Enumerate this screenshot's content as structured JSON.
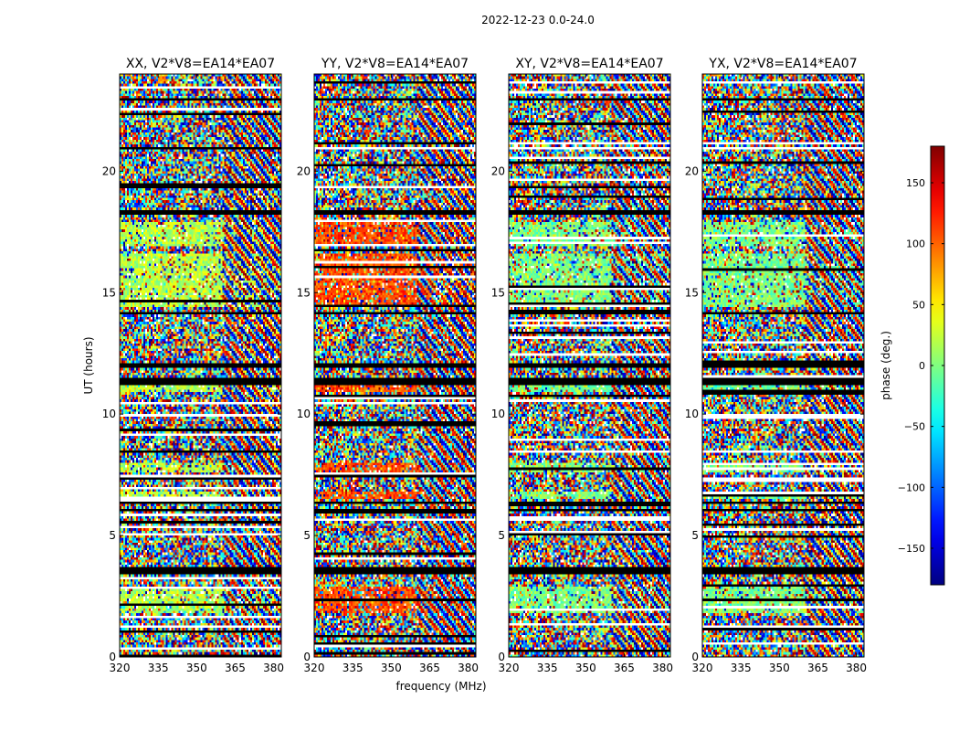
{
  "suptitle": "2022-12-23 0.0-24.0",
  "chart_data": {
    "type": "heatmap",
    "panels": [
      {
        "title": "XX, V2*V8=EA14*EA07",
        "pol": "XX",
        "coherent_value": 20
      },
      {
        "title": "YY, V2*V8=EA14*EA07",
        "pol": "YY",
        "coherent_value": 110
      },
      {
        "title": "XY, V2*V8=EA14*EA07",
        "pol": "XY",
        "coherent_value": 0
      },
      {
        "title": "YX, V2*V8=EA14*EA07",
        "pol": "YX",
        "coherent_value": 0
      }
    ],
    "x": {
      "label": "frequency (MHz)",
      "range": [
        320,
        383
      ],
      "ticks": [
        320,
        335,
        350,
        365,
        380
      ],
      "tick_labels": [
        "320",
        "335",
        "350",
        "365",
        "380"
      ]
    },
    "y": {
      "label": "UT (hours)",
      "range": [
        0,
        24
      ],
      "ticks": [
        0,
        5,
        10,
        15,
        20
      ],
      "tick_labels": [
        "0",
        "5",
        "10",
        "15",
        "20"
      ]
    },
    "colorbar": {
      "label": "phase (deg.)",
      "range": [
        -180,
        180
      ],
      "colormap": "jet",
      "ticks": [
        -150,
        -100,
        -50,
        0,
        50,
        100,
        150
      ],
      "tick_labels": [
        "−150",
        "−100",
        "−50",
        "0",
        "50",
        "100",
        "150"
      ]
    },
    "flagged_bands_hours": [
      [
        3.35,
        3.7
      ],
      [
        5.95,
        6.1
      ],
      [
        6.3,
        6.4
      ],
      [
        11.25,
        11.45
      ],
      [
        11.9,
        12.05
      ],
      [
        14.05,
        14.15
      ],
      [
        18.25,
        18.4
      ],
      [
        22.9,
        23.0
      ]
    ],
    "coherent_bands_hours": [
      [
        1.8,
        2.9
      ],
      [
        6.5,
        6.8
      ],
      [
        7.6,
        8.0
      ],
      [
        10.9,
        11.2
      ],
      [
        14.4,
        16.6
      ],
      [
        16.9,
        17.9
      ]
    ],
    "fringe_start_mhz": 360
  }
}
